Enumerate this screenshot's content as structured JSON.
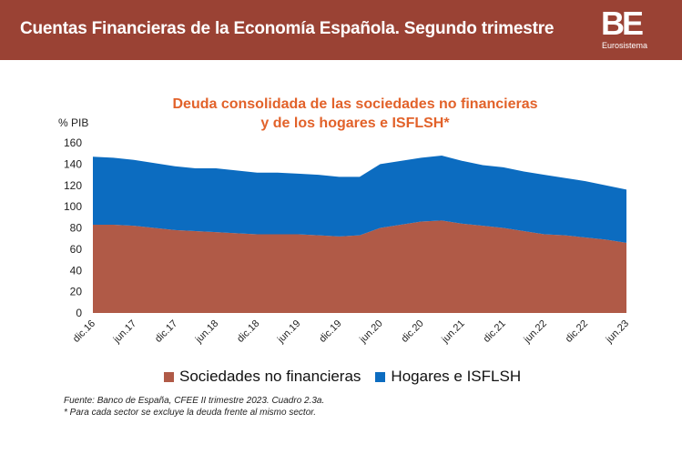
{
  "header": {
    "title": "Cuentas Financieras de la Economía Española. Segundo trimestre",
    "logo_mark": "BE",
    "logo_sub": "Eurosistema"
  },
  "colors": {
    "header_bg": "#9a4234",
    "title": "#e2622a",
    "series_1": "#b05a47",
    "series_2": "#0c6cc0"
  },
  "chart_data": {
    "type": "area",
    "stacked": true,
    "title_line1": "Deuda consolidada de las sociedades no financieras",
    "title_line2": "y de los hogares e ISFLSH*",
    "y_unit": "% PIB",
    "ylim": [
      0,
      160
    ],
    "yticks": [
      0,
      20,
      40,
      60,
      80,
      100,
      120,
      140,
      160
    ],
    "grid": false,
    "legend_position": "bottom",
    "x": [
      "dic.16",
      "mar.17",
      "jun.17",
      "sep.17",
      "dic.17",
      "mar.18",
      "jun.18",
      "sep.18",
      "dic.18",
      "mar.19",
      "jun.19",
      "sep.19",
      "dic.19",
      "mar.20",
      "jun.20",
      "sep.20",
      "dic.20",
      "mar.21",
      "jun.21",
      "sep.21",
      "dic.21",
      "mar.22",
      "jun.22",
      "sep.22",
      "dic.22",
      "mar.23",
      "jun.23"
    ],
    "xtick_labels": [
      "dic.16",
      "jun.17",
      "dic.17",
      "jun.18",
      "dic.18",
      "jun.19",
      "dic.19",
      "jun.20",
      "dic.20",
      "jun.21",
      "dic.21",
      "jun.22",
      "dic.22",
      "jun.23"
    ],
    "series": [
      {
        "name": "Sociedades no financieras",
        "values": [
          83,
          83,
          82,
          80,
          78,
          77,
          76,
          75,
          74,
          74,
          74,
          73,
          72,
          73,
          80,
          83,
          86,
          87,
          84,
          82,
          80,
          77,
          74,
          73,
          71,
          69,
          66
        ]
      },
      {
        "name": "Hogares e ISFLSH",
        "values": [
          64,
          63,
          62,
          61,
          60,
          59,
          60,
          59,
          58,
          58,
          57,
          57,
          56,
          55,
          60,
          60,
          60,
          61,
          59,
          57,
          57,
          56,
          56,
          54,
          53,
          51,
          50
        ]
      }
    ],
    "totals": [
      147,
      146,
      144,
      141,
      138,
      136,
      136,
      134,
      132,
      132,
      131,
      130,
      128,
      128,
      140,
      143,
      146,
      148,
      143,
      139,
      137,
      133,
      130,
      127,
      124,
      120,
      116
    ]
  },
  "source": {
    "line1": "Fuente: Banco de España, CFEE II trimestre 2023. Cuadro 2.3a.",
    "line2": "* Para cada sector se excluye la deuda frente al mismo sector."
  }
}
